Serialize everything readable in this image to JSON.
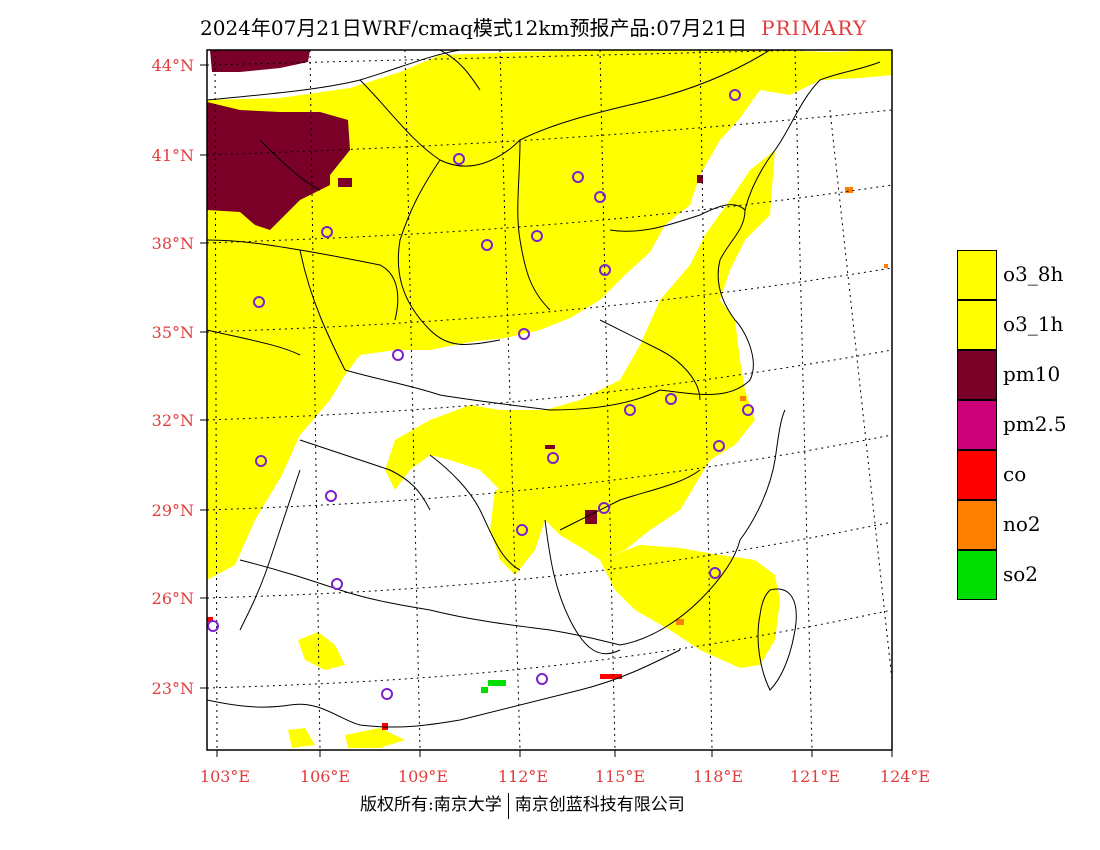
{
  "title": {
    "main": "2024年07月21日WRF/cmaq模式12km预报产品:07月21日",
    "tag": "PRIMARY"
  },
  "axes": {
    "lat_labels": [
      "44°N",
      "41°N",
      "38°N",
      "35°N",
      "32°N",
      "29°N",
      "26°N",
      "23°N"
    ],
    "lon_labels": [
      "103°E",
      "106°E",
      "109°E",
      "112°E",
      "115°E",
      "118°E",
      "121°E",
      "124°E"
    ]
  },
  "legend": [
    {
      "label": "o3_8h",
      "color": "#ffff00"
    },
    {
      "label": "o3_1h",
      "color": "#ffff00"
    },
    {
      "label": "pm10",
      "color": "#7a0028"
    },
    {
      "label": "pm2.5",
      "color": "#cc0077"
    },
    {
      "label": "co",
      "color": "#ff0000"
    },
    {
      "label": "no2",
      "color": "#ff7f00"
    },
    {
      "label": "so2",
      "color": "#00dd00"
    }
  ],
  "footer": {
    "left": "版权所有:南京大学",
    "right": "南京创蓝科技有限公司"
  },
  "colors": {
    "axis_label": "#e03c3c",
    "station_marker": "#7a22cc"
  }
}
